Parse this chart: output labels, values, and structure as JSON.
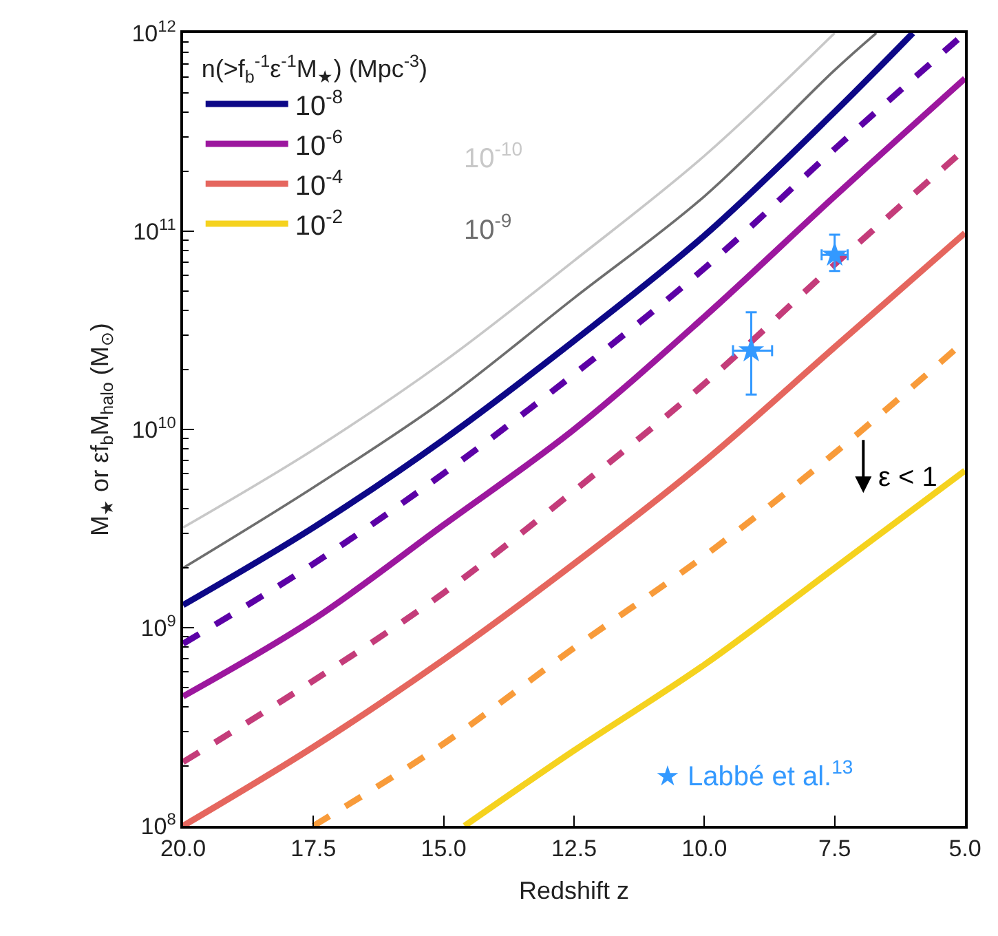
{
  "chart_data": {
    "type": "line",
    "xlabel": "Redshift z",
    "ylabel": "M$_{★}$ or εf$_{b}$M$_{halo}$ (M$_{⊙}$)",
    "legend_title": "n(>f$_{b}$$^{-1}$ε$^{-1}$M$_{★}$) (Mpc$^{-3}$)",
    "xlim": [
      20,
      5
    ],
    "xticks": [
      {
        "value": 20,
        "label": "20.0"
      },
      {
        "value": 17.5,
        "label": "17.5"
      },
      {
        "value": 15,
        "label": "15.0"
      },
      {
        "value": 12.5,
        "label": "12.5"
      },
      {
        "value": 10,
        "label": "10.0"
      },
      {
        "value": 7.5,
        "label": "7.5"
      },
      {
        "value": 5,
        "label": "5.0"
      }
    ],
    "ylim": [
      100000000.0,
      1000000000000.0
    ],
    "yticks": [
      {
        "value": 100000000.0,
        "label": "10$^{8}$"
      },
      {
        "value": 1000000000.0,
        "label": "10$^{9}$"
      },
      {
        "value": 10000000000.0,
        "label": "10$^{10}$"
      },
      {
        "value": 100000000000.0,
        "label": "10$^{11}$"
      },
      {
        "value": 1000000000000.0,
        "label": "10$^{12}$"
      }
    ],
    "log": "y",
    "legend": "top left",
    "annotations": [
      "ε < 1"
    ],
    "series": [
      {
        "name": "10$^{-10}$",
        "color": "#c8c8c8",
        "line_style": "solid",
        "x": [
          20,
          17.5,
          15,
          12.5,
          10,
          7.5
        ],
        "values": [
          3200000000.0,
          7900000000.0,
          22000000000.0,
          71000000000.0,
          240000000000.0,
          1000000000000.0
        ]
      },
      {
        "name": "10$^{-9}$",
        "color": "#6e6e6e",
        "line_style": "solid",
        "x": [
          20,
          17.5,
          15,
          12.5,
          10,
          7.5,
          6.7
        ],
        "values": [
          2000000000.0,
          5100000000.0,
          14000000000.0,
          46000000000.0,
          150000000000.0,
          650000000000.0,
          1000000000000.0
        ]
      },
      {
        "name": "10$^{-8}$",
        "color": "#0d0887",
        "line_style": "solid",
        "x": [
          20,
          17.5,
          15,
          12.5,
          10,
          7.5,
          6
        ],
        "values": [
          1300000000.0,
          3200000000.0,
          8900000000.0,
          28000000000.0,
          95000000000.0,
          400000000000.0,
          1000000000000.0
        ]
      },
      {
        "color": "#5c01a6",
        "line_style": "dashed",
        "x": [
          20,
          17.5,
          15,
          12.5,
          10,
          7.5,
          5
        ],
        "values": [
          830000000.0,
          2100000000.0,
          6000000000.0,
          19000000000.0,
          65000000000.0,
          260000000000.0,
          1000000000000.0
        ]
      },
      {
        "name": "10$^{-6}$",
        "color": "#9c179e",
        "line_style": "solid",
        "x": [
          20,
          17.5,
          15,
          12.5,
          10,
          7.5,
          5
        ],
        "values": [
          450000000.0,
          1100000000.0,
          3300000000.0,
          10000000000.0,
          37000000000.0,
          150000000000.0,
          590000000000.0
        ]
      },
      {
        "color": "#c43c7a",
        "line_style": "dashed",
        "x": [
          20,
          17.5,
          15,
          12.5,
          10,
          7.5,
          5
        ],
        "values": [
          210000000.0,
          540000000.0,
          1500000000.0,
          4900000000.0,
          17000000000.0,
          68000000000.0,
          260000000000.0
        ]
      },
      {
        "name": "10$^{-4}$",
        "color": "#e5665e",
        "line_style": "solid",
        "x": [
          20,
          17.5,
          15,
          12.5,
          10,
          7.5,
          5
        ],
        "values": [
          100000000.0,
          250000000.0,
          690000000.0,
          2100000000.0,
          6900000000.0,
          26000000000.0,
          98000000000.0
        ]
      },
      {
        "color": "#f89b3a",
        "line_style": "dashed",
        "x": [
          17.5,
          15,
          12.5,
          10,
          7.5,
          5
        ],
        "values": [
          100000000.0,
          260000000.0,
          790000000.0,
          2300000000.0,
          7600000000.0,
          28000000000.0
        ]
      },
      {
        "name": "10$^{-2}$",
        "color": "#f5d21e",
        "line_style": "solid",
        "x": [
          14.6,
          12.5,
          10,
          7.5,
          5
        ],
        "values": [
          100000000.0,
          240000000.0,
          650000000.0,
          2000000000.0,
          6200000000.0
        ]
      },
      {
        "name": "★ Labbé et al.$^{13}$",
        "type": "scatter",
        "marker": "star",
        "color": "#3399ff",
        "x": [
          9.1,
          7.5
        ],
        "values": [
          25000000000.0,
          76000000000.0
        ],
        "errors": [
          [
            15000000000.0,
            39000000000.0
          ],
          [
            63000000000.0,
            96000000000.0
          ]
        ],
        "xerrors": [
          [
            8.7,
            9.45
          ],
          [
            7.25,
            7.75
          ]
        ]
      }
    ]
  }
}
